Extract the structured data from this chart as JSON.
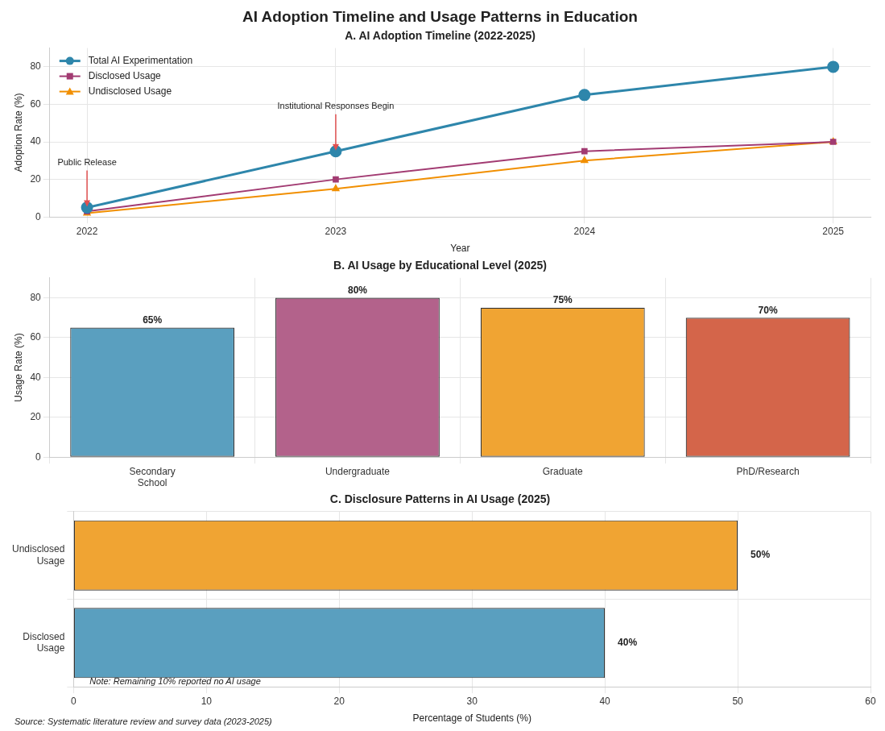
{
  "chart_data": [
    {
      "type": "line",
      "title": "AI Adoption Timeline and Usage Patterns in Education",
      "subtitle": "A. AI Adoption Timeline (2022-2025)",
      "xlabel": "Year",
      "ylabel": "Adoption Rate (%)",
      "x": [
        2022,
        2023,
        2024,
        2025
      ],
      "xlim": [
        2021.85,
        2025.15
      ],
      "xticks": [
        2022,
        2023,
        2024,
        2025
      ],
      "ylim": [
        0,
        90
      ],
      "yticks": [
        0,
        20,
        40,
        60,
        80
      ],
      "series": [
        {
          "name": "Total AI Experimentation",
          "color": "#2e86ab",
          "marker": "circle",
          "values": [
            5,
            35,
            65,
            80
          ]
        },
        {
          "name": "Disclosed Usage",
          "color": "#a23b72",
          "marker": "square",
          "values": [
            3,
            20,
            35,
            40
          ]
        },
        {
          "name": "Undisclosed Usage",
          "color": "#f18f01",
          "marker": "triangle",
          "values": [
            2,
            15,
            30,
            40
          ]
        }
      ],
      "annotations": [
        {
          "text": "Public Release",
          "x": 2022,
          "y": 5
        },
        {
          "text": "Institutional Responses Begin",
          "x": 2023,
          "y": 35
        }
      ],
      "legend": "top left",
      "grid": true
    },
    {
      "type": "bar",
      "title": "B. AI Usage by Educational Level (2025)",
      "ylabel": "Usage Rate (%)",
      "categories": [
        "Secondary\nSchool",
        "Undergraduate",
        "Graduate",
        "PhD/Research"
      ],
      "values": [
        65,
        80,
        75,
        70
      ],
      "colors": [
        "#5a9fbf",
        "#b3628b",
        "#f0a433",
        "#d4654a"
      ],
      "value_labels": [
        "65%",
        "80%",
        "75%",
        "70%"
      ],
      "ylim": [
        0,
        90
      ],
      "yticks": [
        0,
        20,
        40,
        60,
        80
      ],
      "grid": true
    },
    {
      "type": "bar",
      "orientation": "horizontal",
      "title": "C. Disclosure Patterns in AI Usage (2025)",
      "xlabel": "Percentage of Students (%)",
      "categories": [
        "Undisclosed\nUsage",
        "Disclosed\nUsage"
      ],
      "values": [
        50,
        40
      ],
      "colors": [
        "#f0a433",
        "#5a9fbf"
      ],
      "value_labels": [
        "50%",
        "40%"
      ],
      "xlim": [
        0,
        60
      ],
      "xticks": [
        0,
        10,
        20,
        30,
        40,
        50,
        60
      ],
      "grid": true,
      "annotations": [
        "Note: Remaining 10% reported no AI usage",
        "Source: Systematic literature review and survey data (2023-2025)"
      ]
    }
  ]
}
